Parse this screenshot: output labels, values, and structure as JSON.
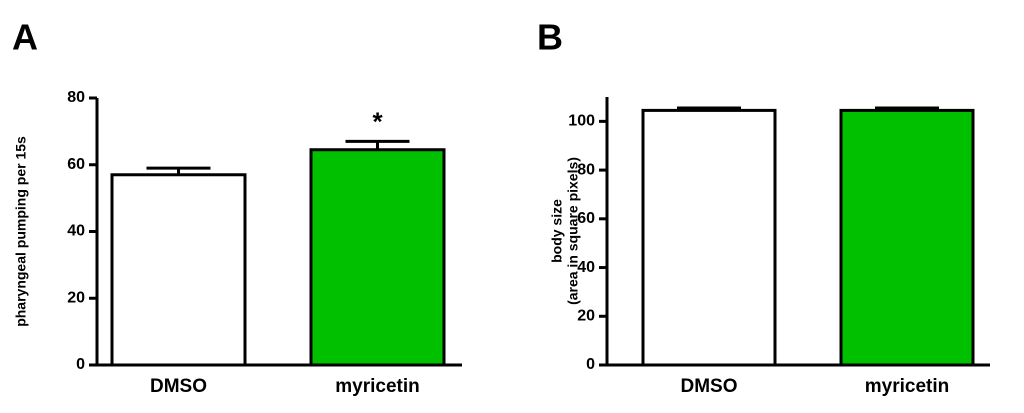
{
  "chart_data": [
    {
      "type": "bar",
      "panel": "A",
      "ylabel": [
        "pharyngeal pumping per 15s"
      ],
      "categories": [
        "DMSO",
        "myricetin"
      ],
      "values": [
        57,
        64.5
      ],
      "errors": [
        2,
        2.5
      ],
      "colors": [
        "#ffffff",
        "#00c000"
      ],
      "annotations": [
        null,
        "*"
      ],
      "ylim": [
        0,
        80
      ],
      "yticks": [
        0,
        20,
        40,
        60,
        80
      ]
    },
    {
      "type": "bar",
      "panel": "B",
      "ylabel": [
        "body size",
        "(area in square pixels)"
      ],
      "categories": [
        "DMSO",
        "myricetin"
      ],
      "values": [
        104.5,
        104.5
      ],
      "errors": [
        1,
        1
      ],
      "colors": [
        "#ffffff",
        "#00c000"
      ],
      "annotations": [
        null,
        null
      ],
      "ylim": [
        0,
        110
      ],
      "yticks": [
        0,
        20,
        40,
        60,
        80,
        100
      ]
    }
  ]
}
